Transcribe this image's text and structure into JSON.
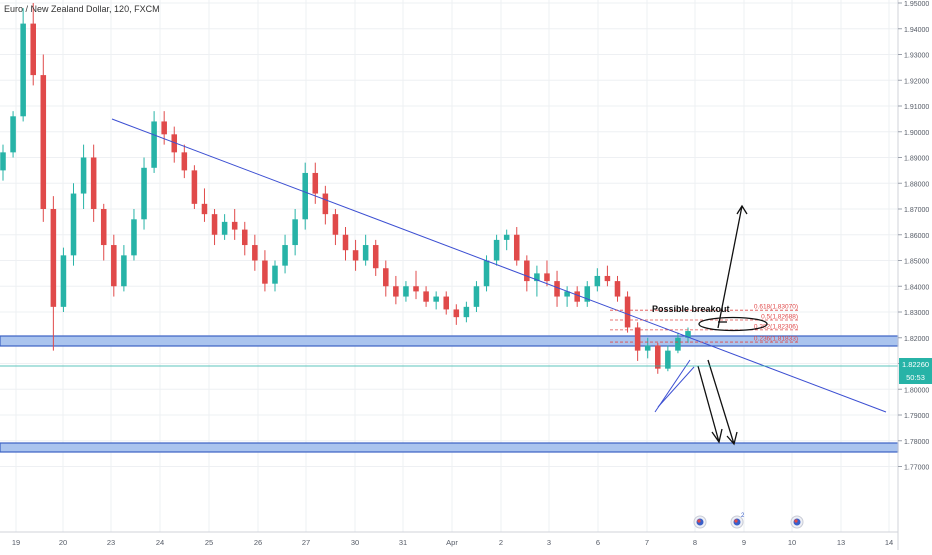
{
  "header": {
    "title": "Euro / New Zealand Dollar, 120, FXCM"
  },
  "price_badge": {
    "price": "1.82260",
    "countdown": "50:53",
    "color": "#27b3a7"
  },
  "annotations": {
    "breakout_label": "Possible breakout"
  },
  "fib_levels": [
    {
      "label": "0.618(1.83070)",
      "price": 1.8307,
      "color": "#e04a4a"
    },
    {
      "label": "0.5(1.82688)",
      "price": 1.82688,
      "color": "#e04a4a"
    },
    {
      "label": "0.382(1.82306)",
      "price": 1.82306,
      "color": "#e04a4a"
    },
    {
      "label": "0.236(1.81833)",
      "price": 1.81833,
      "color": "#e04a4a"
    }
  ],
  "event_icons": [
    {
      "name": "event-icon",
      "badge": ""
    },
    {
      "name": "event-icon",
      "badge": "2"
    },
    {
      "name": "event-icon",
      "badge": ""
    }
  ],
  "chart_data": {
    "type": "candlestick",
    "up_color": "#27b3a7",
    "down_color": "#e04a4a",
    "y_ticks": [
      "1.95000",
      "1.94000",
      "1.93000",
      "1.92000",
      "1.91000",
      "1.90000",
      "1.89000",
      "1.88000",
      "1.87000",
      "1.86000",
      "1.85000",
      "1.84000",
      "1.83000",
      "1.82000",
      "1.81000",
      "1.80000",
      "1.79000",
      "1.78000",
      "1.77000"
    ],
    "x_ticks": [
      "19",
      "20",
      "23",
      "24",
      "25",
      "26",
      "27",
      "30",
      "31",
      "Apr",
      "2",
      "3",
      "6",
      "7",
      "8",
      "9",
      "10",
      "13",
      "14"
    ],
    "candles": [
      [
        1.885,
        1.895,
        1.881,
        1.892
      ],
      [
        1.892,
        1.908,
        1.89,
        1.906
      ],
      [
        1.906,
        1.948,
        1.904,
        1.942
      ],
      [
        1.942,
        1.95,
        1.918,
        1.922
      ],
      [
        1.922,
        1.93,
        1.865,
        1.87
      ],
      [
        1.87,
        1.875,
        1.815,
        1.832
      ],
      [
        1.832,
        1.855,
        1.83,
        1.852
      ],
      [
        1.852,
        1.88,
        1.848,
        1.876
      ],
      [
        1.876,
        1.895,
        1.87,
        1.89
      ],
      [
        1.89,
        1.895,
        1.865,
        1.87
      ],
      [
        1.87,
        1.872,
        1.85,
        1.856
      ],
      [
        1.856,
        1.86,
        1.836,
        1.84
      ],
      [
        1.84,
        1.856,
        1.838,
        1.852
      ],
      [
        1.852,
        1.87,
        1.85,
        1.866
      ],
      [
        1.866,
        1.89,
        1.862,
        1.886
      ],
      [
        1.886,
        1.908,
        1.884,
        1.904
      ],
      [
        1.904,
        1.908,
        1.895,
        1.899
      ],
      [
        1.899,
        1.902,
        1.888,
        1.892
      ],
      [
        1.892,
        1.895,
        1.882,
        1.885
      ],
      [
        1.885,
        1.887,
        1.87,
        1.872
      ],
      [
        1.872,
        1.878,
        1.865,
        1.868
      ],
      [
        1.868,
        1.87,
        1.856,
        1.86
      ],
      [
        1.86,
        1.868,
        1.858,
        1.865
      ],
      [
        1.865,
        1.87,
        1.858,
        1.862
      ],
      [
        1.862,
        1.865,
        1.852,
        1.856
      ],
      [
        1.856,
        1.86,
        1.846,
        1.85
      ],
      [
        1.85,
        1.854,
        1.838,
        1.841
      ],
      [
        1.841,
        1.85,
        1.838,
        1.848
      ],
      [
        1.848,
        1.86,
        1.845,
        1.856
      ],
      [
        1.856,
        1.87,
        1.852,
        1.866
      ],
      [
        1.866,
        1.888,
        1.862,
        1.884
      ],
      [
        1.884,
        1.888,
        1.872,
        1.876
      ],
      [
        1.876,
        1.879,
        1.864,
        1.868
      ],
      [
        1.868,
        1.87,
        1.856,
        1.86
      ],
      [
        1.86,
        1.863,
        1.85,
        1.854
      ],
      [
        1.854,
        1.858,
        1.846,
        1.85
      ],
      [
        1.85,
        1.86,
        1.848,
        1.856
      ],
      [
        1.856,
        1.858,
        1.844,
        1.847
      ],
      [
        1.847,
        1.85,
        1.836,
        1.84
      ],
      [
        1.84,
        1.844,
        1.833,
        1.836
      ],
      [
        1.836,
        1.842,
        1.834,
        1.84
      ],
      [
        1.84,
        1.846,
        1.835,
        1.838
      ],
      [
        1.838,
        1.84,
        1.832,
        1.834
      ],
      [
        1.834,
        1.838,
        1.831,
        1.836
      ],
      [
        1.836,
        1.838,
        1.829,
        1.831
      ],
      [
        1.831,
        1.833,
        1.825,
        1.828
      ],
      [
        1.828,
        1.834,
        1.826,
        1.832
      ],
      [
        1.832,
        1.842,
        1.83,
        1.84
      ],
      [
        1.84,
        1.852,
        1.838,
        1.85
      ],
      [
        1.85,
        1.86,
        1.848,
        1.858
      ],
      [
        1.858,
        1.862,
        1.854,
        1.86
      ],
      [
        1.86,
        1.863,
        1.848,
        1.85
      ],
      [
        1.85,
        1.852,
        1.838,
        1.842
      ],
      [
        1.842,
        1.848,
        1.836,
        1.845
      ],
      [
        1.845,
        1.85,
        1.84,
        1.842
      ],
      [
        1.842,
        1.846,
        1.832,
        1.836
      ],
      [
        1.836,
        1.84,
        1.832,
        1.838
      ],
      [
        1.838,
        1.84,
        1.832,
        1.834
      ],
      [
        1.834,
        1.842,
        1.832,
        1.84
      ],
      [
        1.84,
        1.847,
        1.838,
        1.844
      ],
      [
        1.844,
        1.848,
        1.84,
        1.842
      ],
      [
        1.842,
        1.844,
        1.834,
        1.836
      ],
      [
        1.836,
        1.838,
        1.822,
        1.824
      ],
      [
        1.824,
        1.826,
        1.811,
        1.815
      ],
      [
        1.815,
        1.82,
        1.812,
        1.817
      ],
      [
        1.817,
        1.818,
        1.806,
        1.808
      ],
      [
        1.808,
        1.817,
        1.807,
        1.815
      ],
      [
        1.815,
        1.822,
        1.814,
        1.82
      ],
      [
        1.82,
        1.824,
        1.818,
        1.8226
      ]
    ]
  }
}
